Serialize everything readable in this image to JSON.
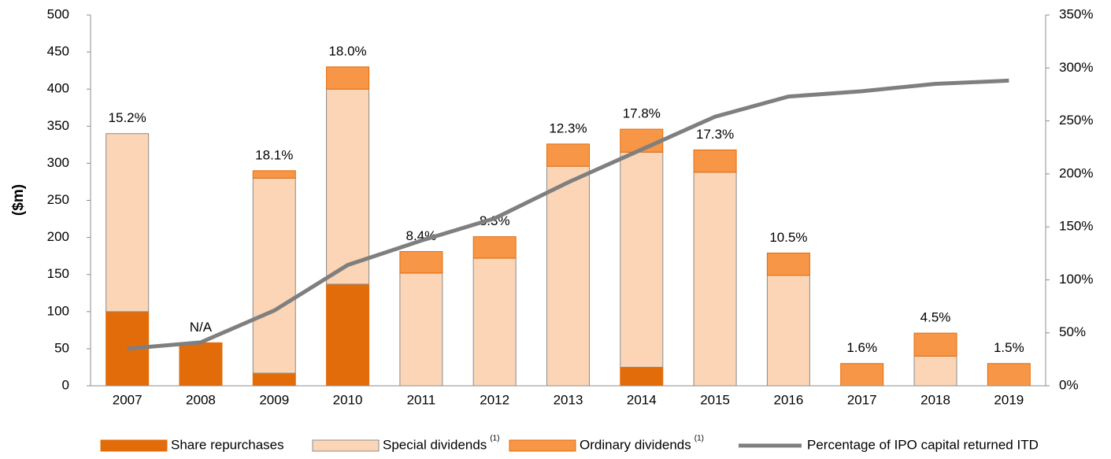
{
  "chart_data": {
    "type": "stacked_bar_line",
    "y_label": "($m)",
    "categories": [
      "2007",
      "2008",
      "2009",
      "2010",
      "2011",
      "2012",
      "2013",
      "2014",
      "2015",
      "2016",
      "2017",
      "2018",
      "2019"
    ],
    "series": [
      {
        "name": "Share repurchases",
        "color": "#e36c0a",
        "values": [
          100,
          58,
          17,
          137,
          0,
          0,
          0,
          25,
          0,
          0,
          0,
          0,
          0
        ]
      },
      {
        "name": "Special dividends",
        "footnote_mark": "(1)",
        "color": "#fbd5b5",
        "values": [
          240,
          0,
          263,
          263,
          152,
          172,
          296,
          290,
          288,
          149,
          0,
          40,
          0
        ]
      },
      {
        "name": "Ordinary dividends",
        "footnote_mark": "(1)",
        "color": "#f79646",
        "values": [
          0,
          0,
          10,
          30,
          29,
          29,
          30,
          31,
          30,
          30,
          30,
          31,
          30
        ]
      },
      {
        "name": "Percentage of IPO capital returned ITD",
        "color": "#7f7f7f",
        "axis": "y2",
        "values": [
          35,
          41,
          71,
          114,
          137,
          158,
          192,
          223,
          254,
          273,
          278,
          285,
          288
        ]
      }
    ],
    "bar_labels": [
      "15.2%",
      "N/A",
      "18.1%",
      "18.0%",
      "8.4%",
      "8.3%",
      "12.3%",
      "17.8%",
      "17.3%",
      "10.5%",
      "1.6%",
      "4.5%",
      "1.5%"
    ],
    "ylim": [
      0,
      500
    ],
    "yticks": [
      0,
      50,
      100,
      150,
      200,
      250,
      300,
      350,
      400,
      450,
      500
    ],
    "y2lim": [
      0,
      350
    ],
    "y2ticks": [
      {
        "value": 0,
        "label": "0%"
      },
      {
        "value": 50,
        "label": "50%"
      },
      {
        "value": 100,
        "label": "100%"
      },
      {
        "value": 150,
        "label": "150%"
      },
      {
        "value": 200,
        "label": "200%"
      },
      {
        "value": 250,
        "label": "250%"
      },
      {
        "value": 300,
        "label": "300%"
      },
      {
        "value": 350,
        "label": "350%"
      }
    ],
    "grid": false
  }
}
